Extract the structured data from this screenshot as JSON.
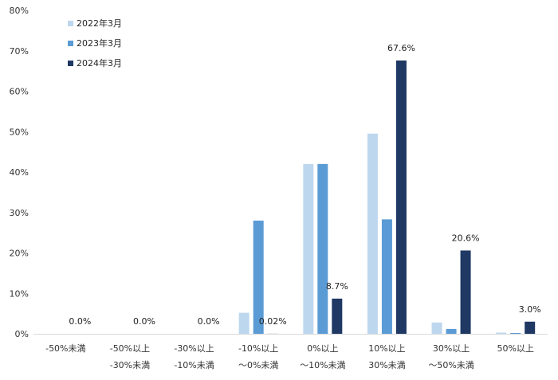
{
  "chart_data": {
    "type": "bar",
    "categories": [
      [
        "-50%未満"
      ],
      [
        "-50%以上",
        "-30%未満"
      ],
      [
        "-30%以上",
        "-10%未満"
      ],
      [
        "-10%以上",
        "～0%未満"
      ],
      [
        "0%以上",
        "～10%未満"
      ],
      [
        "10%以上",
        "30%未満"
      ],
      [
        "30%以上",
        "～50%未満"
      ],
      [
        "50%以上"
      ]
    ],
    "series": [
      {
        "name": "2022年3月",
        "color": "#bdd7ee",
        "values": [
          0,
          0,
          0,
          5.2,
          42.0,
          49.5,
          2.8,
          0.3
        ]
      },
      {
        "name": "2023年3月",
        "color": "#5b9bd5",
        "values": [
          0,
          0,
          0,
          28.0,
          42.0,
          28.3,
          1.2,
          0.2
        ]
      },
      {
        "name": "2024年3月",
        "color": "#1f3864",
        "values": [
          0,
          0,
          0,
          0.02,
          8.7,
          67.6,
          20.6,
          3.0
        ]
      }
    ],
    "data_labels": [
      "0.0%",
      "0.0%",
      "0.0%",
      "0.02%",
      "8.7%",
      "67.6%",
      "20.6%",
      "3.0%"
    ],
    "data_labels_series": "2024年3月",
    "ylim": [
      0,
      80
    ],
    "yticks": [
      "0%",
      "10%",
      "20%",
      "30%",
      "40%",
      "50%",
      "60%",
      "70%",
      "80%"
    ],
    "legend": "top-left",
    "grid": false
  }
}
